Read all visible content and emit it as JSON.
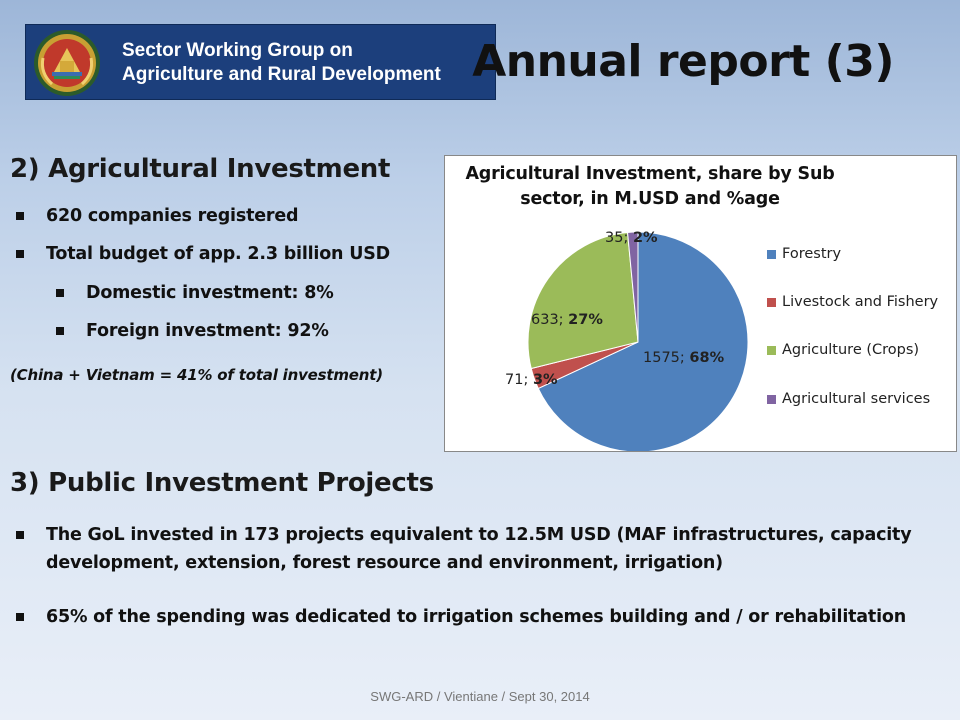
{
  "banner": {
    "line1": "Sector Working Group on",
    "line2": "Agriculture and Rural Development"
  },
  "title": "Annual report (3)",
  "section2": {
    "heading": "2) Agricultural  Investment",
    "bullets": [
      "620 companies registered",
      "Total budget of app. 2.3 billion USD"
    ],
    "sub_bullets": [
      "Domestic investment: 8%",
      "Foreign investment: 92%"
    ],
    "note": "(China + Vietnam = 41% of total investment)"
  },
  "section3": {
    "heading": "3) Public Investment Projects",
    "bullets": [
      "The GoL invested in 173 projects equivalent to 12.5M USD (MAF infrastructures, capacity development, extension, forest resource and environment, irrigation)",
      "65% of the spending was dedicated to irrigation schemes building and / or rehabilitation"
    ]
  },
  "chart_data": {
    "type": "pie",
    "title": "Agricultural Investment, share by Sub sector, in M.USD and %age",
    "categories": [
      "Forestry",
      "Livestock and Fishery",
      "Agriculture (Crops)",
      "Agricultural services"
    ],
    "values": [
      1575,
      71,
      633,
      35
    ],
    "percents": [
      68,
      3,
      27,
      2
    ],
    "value_labels": [
      "1575; ",
      "71; ",
      "633; ",
      "35; "
    ],
    "percent_labels": [
      "68%",
      "3%",
      "27%",
      "2%"
    ],
    "colors": [
      "#4f81bd",
      "#c0504d",
      "#9bbb59",
      "#8064a2"
    ],
    "legend_position": "right"
  },
  "footer": "SWG-ARD / Vientiane / Sept 30, 2014"
}
